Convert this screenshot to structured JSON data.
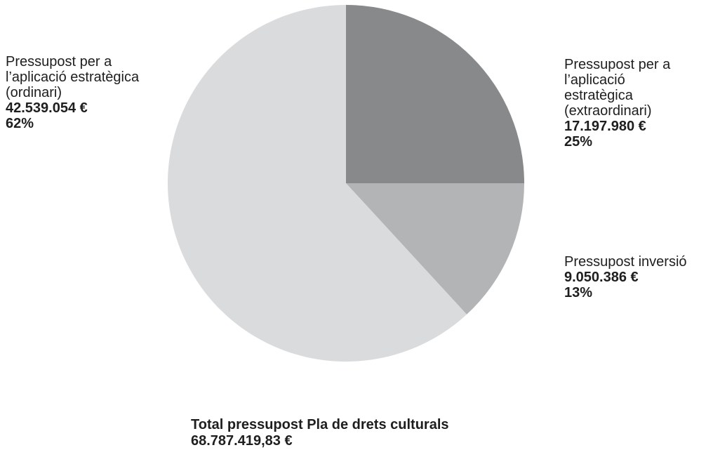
{
  "chart_data": {
    "type": "pie",
    "slices": [
      {
        "label_lines": [
          "Pressupost per a",
          "l’aplicació",
          "estratègica",
          "(extraordinari)"
        ],
        "value": 17197980,
        "value_label": "17.197.980 €",
        "percent": 25,
        "percent_label": "25%",
        "color": "#88898b"
      },
      {
        "label_lines": [
          "Pressupost inversió"
        ],
        "value": 9050386,
        "value_label": "9.050.386 €",
        "percent": 13,
        "percent_label": "13%",
        "color": "#b3b4b6"
      },
      {
        "label_lines": [
          "Pressupost per a",
          "l’aplicació estratègica",
          "(ordinari)"
        ],
        "value": 42539054,
        "value_label": "42.539.054 €",
        "percent": 62,
        "percent_label": "62%",
        "color": "#dadbdd"
      }
    ],
    "start_angle": "12 o'clock",
    "direction": "clockwise",
    "legend": "none"
  },
  "total": {
    "title": "Total pressupost Pla de drets culturals",
    "value": "68.787.419,83 €"
  }
}
